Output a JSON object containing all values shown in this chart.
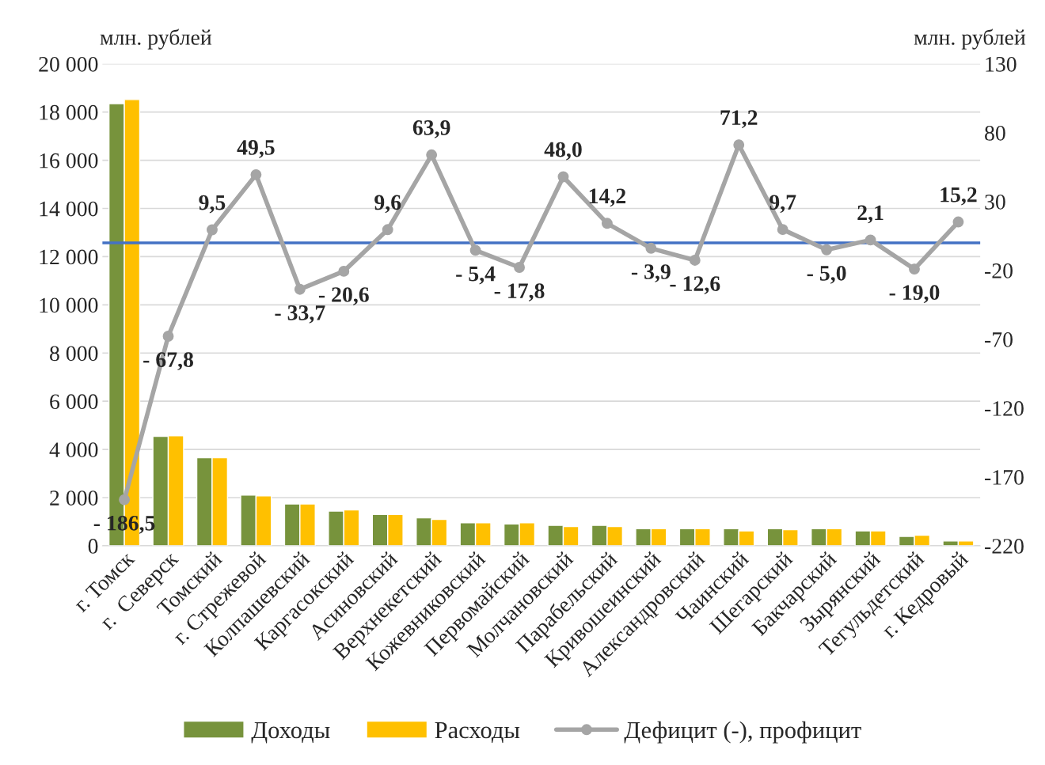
{
  "chart_data": {
    "type": "bar",
    "categories": [
      "г. Томск",
      "г.  Северск",
      "Томский",
      "г. Стрежевой",
      "Колпашевский",
      "Каргасокский",
      "Асиновский",
      "Верхнекетский",
      "Кожевниковский",
      "Первомайский",
      "Молчановский",
      "Парабельский",
      "Кривошеинский",
      "Александровский",
      "Чаинский",
      "Шегарский",
      "Бакчарский",
      "Зырянский",
      "Тегульдетский",
      "г. Кедровый"
    ],
    "series": [
      {
        "name": "Доходы",
        "color": "#77933c",
        "values": [
          18350,
          4540,
          3660,
          2110,
          1740,
          1440,
          1300,
          1160,
          960,
          910,
          850,
          850,
          710,
          710,
          710,
          710,
          710,
          620,
          390,
          200
        ]
      },
      {
        "name": "Расходы",
        "color": "#ffc000",
        "values": [
          18520,
          4570,
          3660,
          2070,
          1740,
          1490,
          1300,
          1100,
          960,
          960,
          800,
          800,
          710,
          710,
          620,
          670,
          710,
          620,
          440,
          200
        ]
      },
      {
        "name": "Дефицит (-), профицит",
        "type": "line",
        "axis": "y2",
        "color": "#a5a5a5",
        "marker": "circle",
        "line_style": "solid",
        "values": [
          -186.5,
          -67.8,
          9.5,
          49.5,
          -33.7,
          -20.6,
          9.6,
          63.9,
          -5.4,
          -17.8,
          48.0,
          14.2,
          -3.9,
          -12.6,
          71.2,
          9.7,
          -5.0,
          2.1,
          -19.0,
          15.2
        ],
        "value_labels": [
          "- 186,5",
          "- 67,8",
          "9,5",
          "49,5",
          "- 33,7",
          "- 20,6",
          "9,6",
          "63,9",
          "- 5,4",
          "- 17,8",
          "48,0",
          "14,2",
          "- 3,9",
          "- 12,6",
          "71,2",
          "9,7",
          "- 5,0",
          "2,1",
          "- 19,0",
          "15,2"
        ]
      }
    ],
    "ylabel": "млн. рублей",
    "y2label": "млн. рублей",
    "ylim": [
      0,
      20000
    ],
    "yticks": [
      {
        "value": 0,
        "label": "0"
      },
      {
        "value": 2000,
        "label": "2 000"
      },
      {
        "value": 4000,
        "label": "4 000"
      },
      {
        "value": 6000,
        "label": "6 000"
      },
      {
        "value": 8000,
        "label": "8 000"
      },
      {
        "value": 10000,
        "label": "10 000"
      },
      {
        "value": 12000,
        "label": "12 000"
      },
      {
        "value": 14000,
        "label": "14 000"
      },
      {
        "value": 16000,
        "label": "16 000"
      },
      {
        "value": 18000,
        "label": "18 000"
      },
      {
        "value": 20000,
        "label": "20 000"
      }
    ],
    "y2lim": [
      -220,
      130
    ],
    "y2ticks": [
      -220,
      -170,
      -120,
      -70,
      -20,
      30,
      80,
      130
    ],
    "ref_lines": [
      {
        "axis": "y2",
        "value": 0,
        "color": "#4472c4",
        "line_style": "solid"
      }
    ],
    "grid": "y",
    "legend": "bottom"
  }
}
